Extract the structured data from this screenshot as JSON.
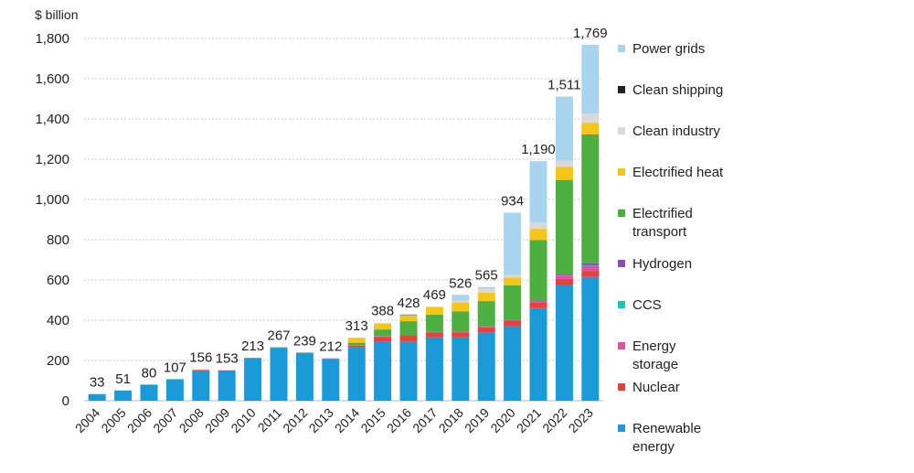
{
  "chart_data": {
    "type": "bar",
    "stacked": true,
    "unit_label": "$ billion",
    "categories": [
      "2004",
      "2005",
      "2006",
      "2007",
      "2008",
      "2009",
      "2010",
      "2011",
      "2012",
      "2013",
      "2014",
      "2015",
      "2016",
      "2017",
      "2018",
      "2019",
      "2020",
      "2021",
      "2022",
      "2023"
    ],
    "totals": [
      "33",
      "51",
      "80",
      "107",
      "156",
      "153",
      "213",
      "267",
      "239",
      "212",
      "313",
      "388",
      "428",
      "469",
      "526",
      "565",
      "934",
      "1,190",
      "1,511",
      "1,769"
    ],
    "y_ticks": [
      "0",
      "200",
      "400",
      "600",
      "800",
      "1,000",
      "1,200",
      "1,400",
      "1,600",
      "1,800"
    ],
    "ylim": [
      0,
      1800
    ],
    "grid": true,
    "legend_position": "right",
    "series": [
      {
        "name": "Renewable\nenergy",
        "color": "#1a9bd7",
        "values": [
          33,
          51,
          80,
          107,
          150,
          150,
          210,
          263,
          236,
          208,
          268,
          295,
          295,
          315,
          315,
          340,
          370,
          460,
          575,
          615
        ]
      },
      {
        "name": "Nuclear",
        "color": "#e8403d",
        "values": [
          0,
          0,
          0,
          0,
          3,
          2,
          3,
          3,
          3,
          3,
          6,
          22,
          28,
          24,
          25,
          25,
          28,
          28,
          30,
          30
        ]
      },
      {
        "name": "Energy\nstorage",
        "color": "#e34fa1",
        "values": [
          0,
          0,
          0,
          0,
          0,
          0,
          0,
          0,
          0,
          0,
          2,
          2,
          2,
          3,
          4,
          5,
          6,
          8,
          15,
          25
        ]
      },
      {
        "name": "CCS",
        "color": "#20c4b4",
        "values": [
          0,
          0,
          0,
          0,
          0,
          0,
          0,
          0,
          0,
          0,
          0,
          0,
          0,
          0,
          0,
          0,
          0,
          0,
          2,
          3
        ]
      },
      {
        "name": "Hydrogen",
        "color": "#8b4fb0",
        "values": [
          0,
          0,
          0,
          0,
          0,
          0,
          0,
          0,
          0,
          0,
          0,
          0,
          0,
          0,
          0,
          0,
          0,
          2,
          5,
          10
        ]
      },
      {
        "name": "Electrified\ntransport",
        "color": "#4caf3f",
        "values": [
          0,
          0,
          0,
          0,
          0,
          0,
          0,
          0,
          0,
          0,
          12,
          35,
          70,
          85,
          100,
          125,
          170,
          300,
          470,
          640
        ]
      },
      {
        "name": "Electrified heat",
        "color": "#f5c518",
        "values": [
          0,
          0,
          0,
          0,
          0,
          0,
          0,
          0,
          0,
          0,
          25,
          29,
          28,
          37,
          45,
          42,
          38,
          56,
          65,
          58
        ]
      },
      {
        "name": "Clean industry",
        "color": "#d9d9d9",
        "values": [
          0,
          0,
          0,
          0,
          3,
          1,
          0,
          1,
          0,
          1,
          0,
          5,
          3,
          5,
          8,
          20,
          12,
          31,
          30,
          46
        ]
      },
      {
        "name": "Clean shipping",
        "color": "#222222",
        "values": [
          0,
          0,
          0,
          0,
          0,
          0,
          0,
          0,
          0,
          0,
          0,
          0,
          2,
          0,
          0,
          0,
          0,
          0,
          0,
          0
        ]
      },
      {
        "name": "Power grids",
        "color": "#a8d4ee",
        "values": [
          0,
          0,
          0,
          0,
          0,
          0,
          0,
          0,
          0,
          0,
          0,
          0,
          0,
          0,
          29,
          8,
          310,
          305,
          319,
          342
        ]
      }
    ],
    "legend_order": [
      "Power grids",
      "Clean shipping",
      "Clean industry",
      "Electrified heat",
      "Electrified\ntransport",
      "Hydrogen",
      "CCS",
      "Energy\nstorage",
      "Nuclear",
      "Renewable\nenergy"
    ]
  }
}
